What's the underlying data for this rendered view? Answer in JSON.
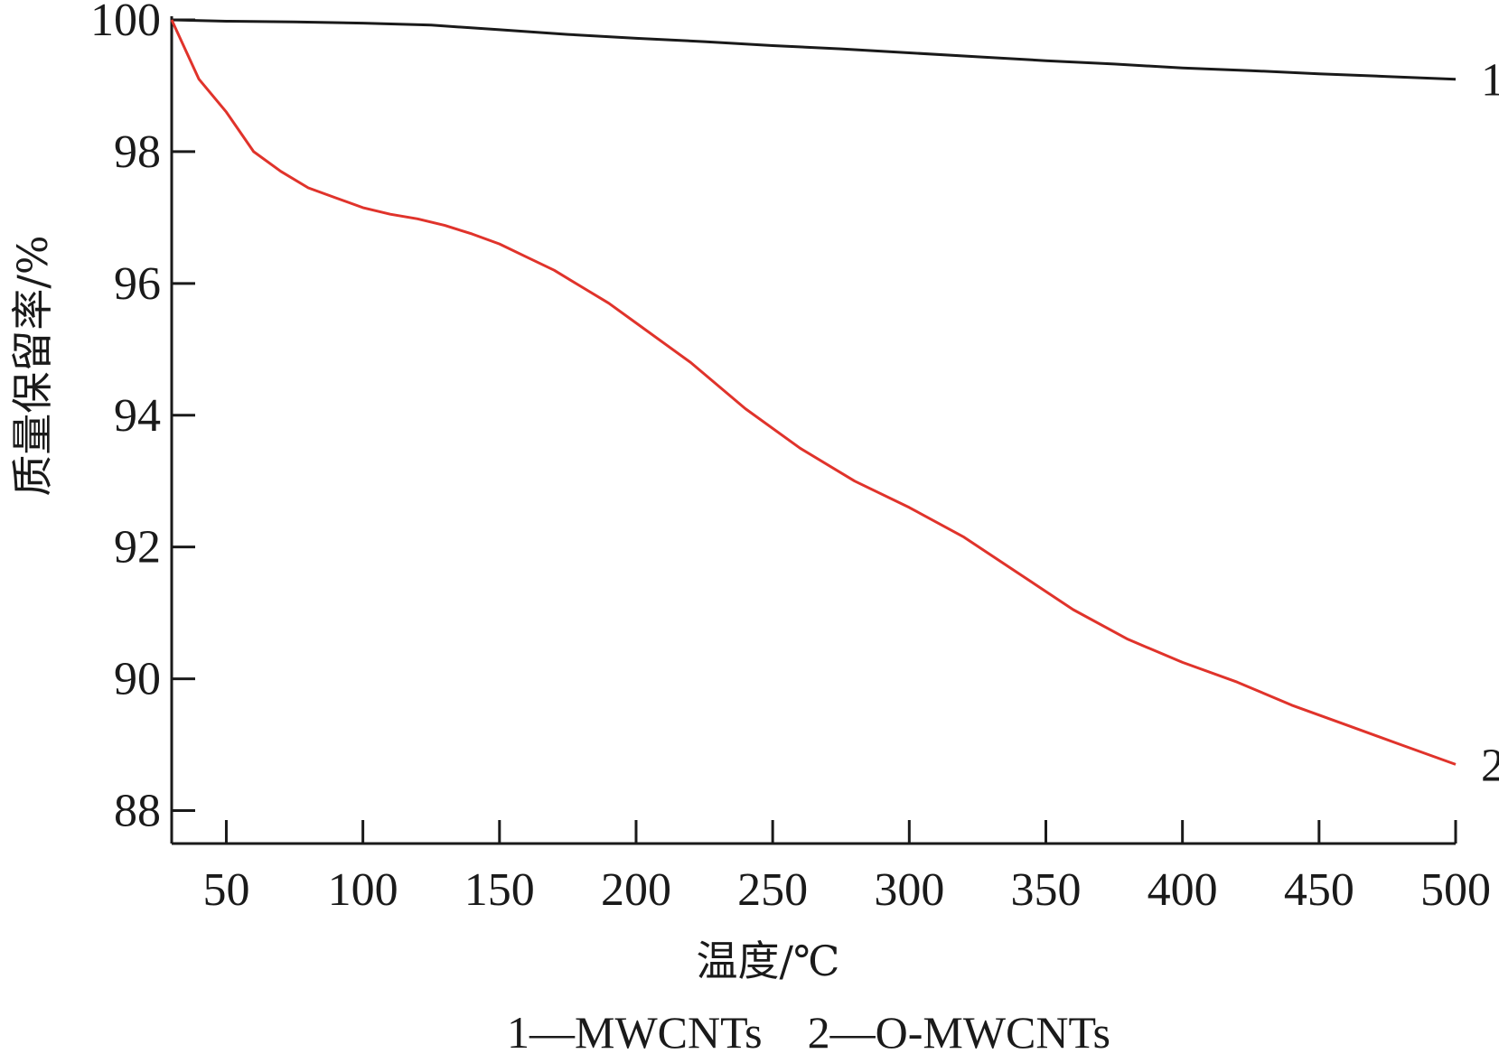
{
  "chart_data": {
    "type": "line",
    "xlabel": "温度/℃",
    "ylabel": "质量保留率/%",
    "xlim": [
      30,
      500
    ],
    "ylim": [
      87.5,
      100
    ],
    "xticks": [
      50,
      100,
      150,
      200,
      250,
      300,
      350,
      400,
      450,
      500
    ],
    "yticks": [
      88,
      90,
      92,
      94,
      96,
      98,
      100
    ],
    "grid": false,
    "legend_text": "1—MWCNTs　2—O-MWCNTs",
    "series": [
      {
        "label": "1",
        "color": "#1a1a1a",
        "x": [
          30,
          50,
          75,
          100,
          125,
          150,
          175,
          200,
          225,
          250,
          275,
          300,
          325,
          350,
          375,
          400,
          425,
          450,
          475,
          500
        ],
        "y": [
          100.0,
          99.98,
          99.97,
          99.95,
          99.92,
          99.85,
          99.78,
          99.72,
          99.67,
          99.61,
          99.56,
          99.5,
          99.44,
          99.38,
          99.33,
          99.27,
          99.23,
          99.18,
          99.14,
          99.1
        ]
      },
      {
        "label": "2",
        "color": "#e0332b",
        "x": [
          30,
          40,
          50,
          60,
          70,
          80,
          90,
          100,
          110,
          120,
          130,
          140,
          150,
          160,
          170,
          180,
          190,
          200,
          220,
          240,
          260,
          280,
          300,
          320,
          340,
          360,
          380,
          400,
          420,
          440,
          460,
          480,
          500
        ],
        "y": [
          100.0,
          99.1,
          98.6,
          98.0,
          97.7,
          97.45,
          97.3,
          97.15,
          97.05,
          96.98,
          96.88,
          96.75,
          96.6,
          96.4,
          96.2,
          95.95,
          95.7,
          95.4,
          94.8,
          94.1,
          93.5,
          93.0,
          92.6,
          92.15,
          91.6,
          91.05,
          90.6,
          90.25,
          89.95,
          89.6,
          89.3,
          89.0,
          88.7
        ]
      }
    ]
  }
}
